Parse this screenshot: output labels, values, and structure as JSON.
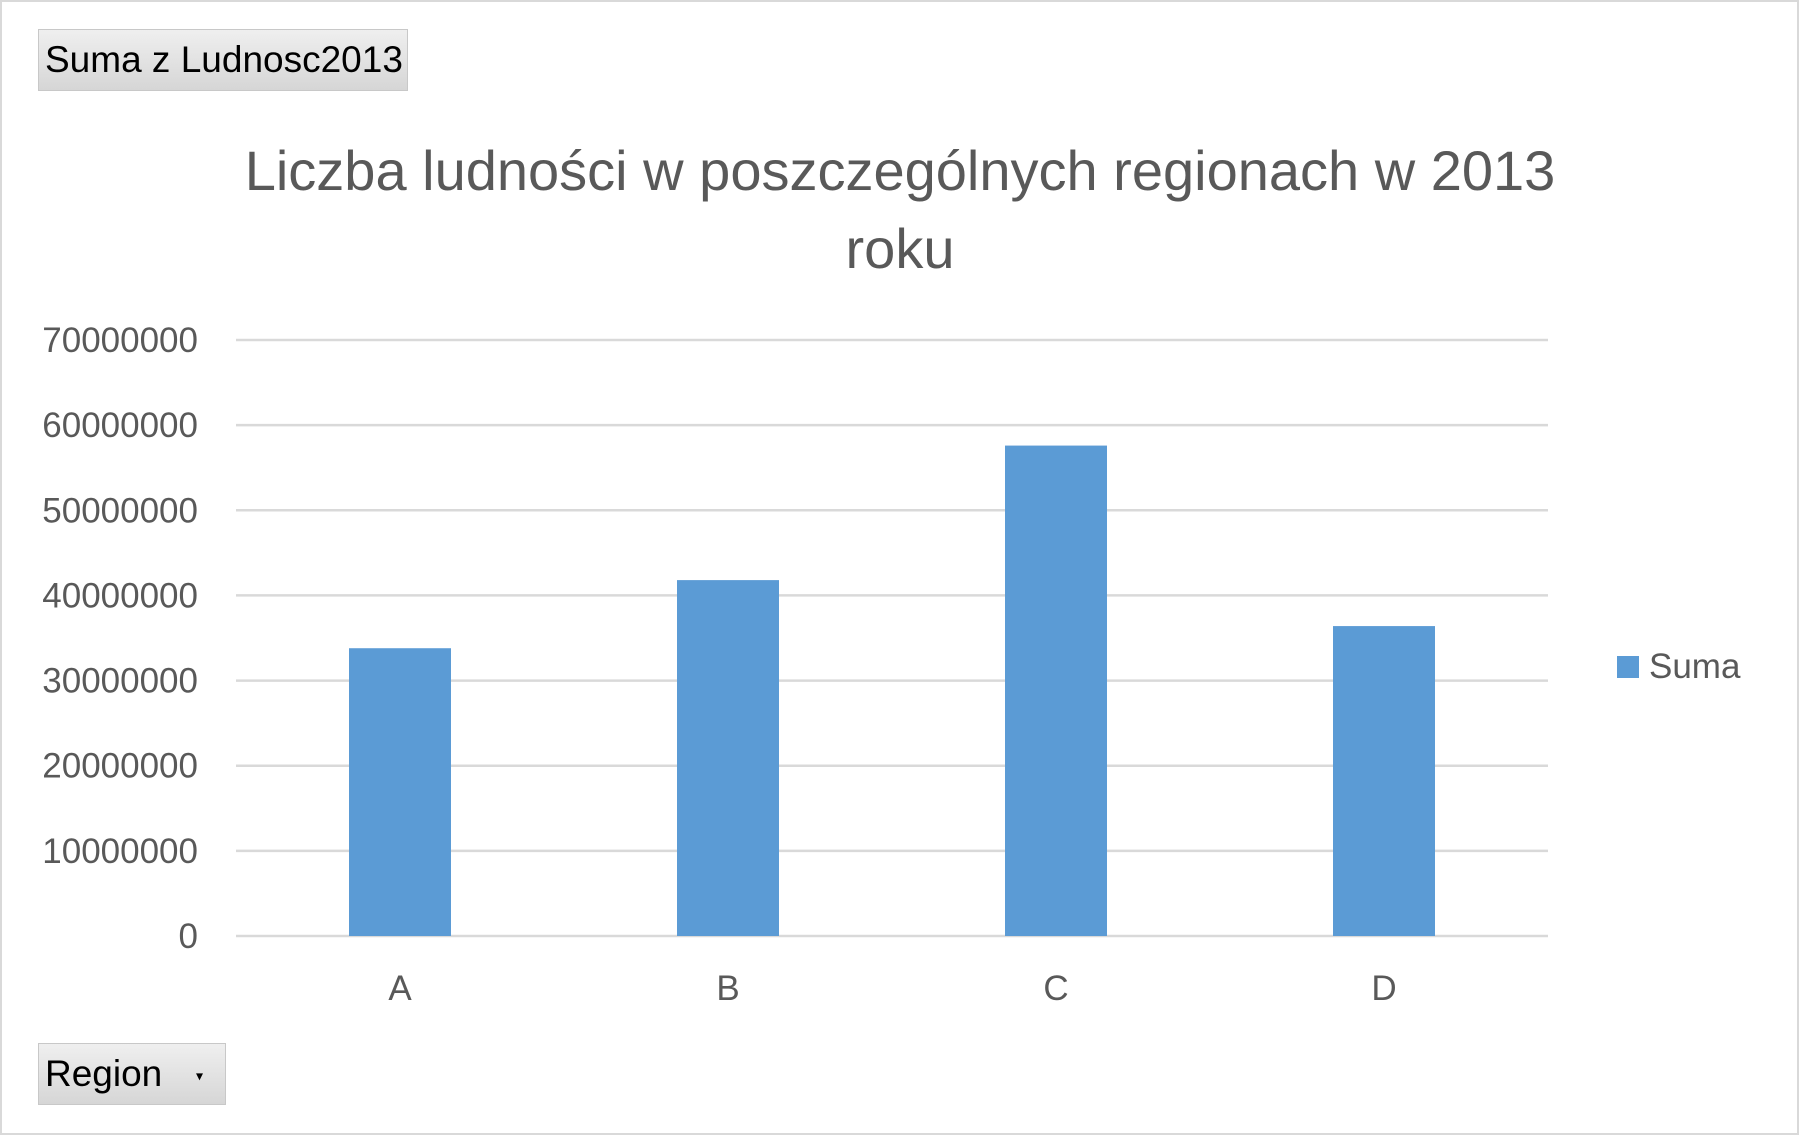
{
  "pivot": {
    "value_field_label": "Suma z Ludnosc2013",
    "axis_field_label": "Region"
  },
  "colors": {
    "bar": "#5b9bd5",
    "grid": "#d9d9d9",
    "text": "#595959"
  },
  "chart_data": {
    "type": "bar",
    "title": "Liczba ludności w poszczególnych regionach w 2013 roku",
    "xlabel": "",
    "ylabel": "",
    "categories": [
      "A",
      "B",
      "C",
      "D"
    ],
    "series": [
      {
        "name": "Suma",
        "values": [
          33800000,
          41800000,
          57600000,
          36400000
        ]
      }
    ],
    "ylim": [
      0,
      70000000
    ],
    "yticks": [
      "0",
      "10000000",
      "20000000",
      "30000000",
      "40000000",
      "50000000",
      "60000000",
      "70000000"
    ],
    "grid": true,
    "legend_position": "right"
  }
}
